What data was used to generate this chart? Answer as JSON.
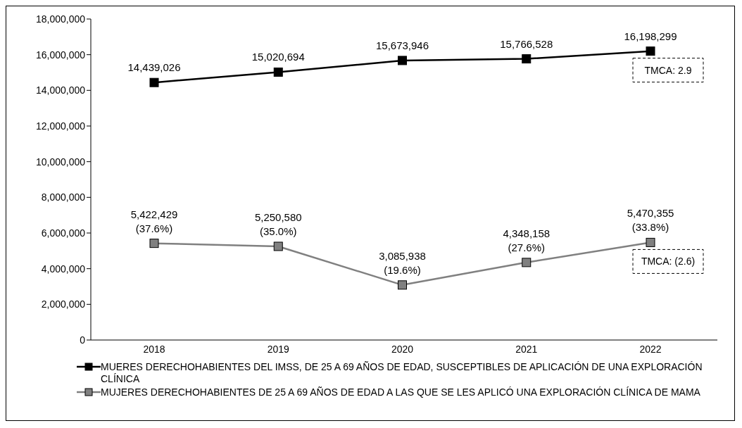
{
  "chart_data": {
    "type": "line",
    "categories": [
      "2018",
      "2019",
      "2020",
      "2021",
      "2022"
    ],
    "series": [
      {
        "name": "MUERES DERECHOHABIENTES DEL IMSS, DE 25 A 69 AÑOS DE EDAD, SUSCEPTIBLES DE APLICACIÓN DE UNA EXPLORACIÓN CLÍNICA",
        "color": "#000000",
        "values": [
          14439026,
          15020694,
          15673946,
          15766528,
          16198299
        ],
        "value_labels": [
          "14,439,026",
          "15,020,694",
          "15,673,946",
          "15,766,528",
          "16,198,299"
        ]
      },
      {
        "name": "MUJERES DERECHOHABIENTES DE 25 A 69 AÑOS DE EDAD A LAS QUE SE LES APLICÓ UNA EXPLORACIÓN CLÍNICA DE MAMA",
        "color": "#808080",
        "values": [
          5422429,
          5250580,
          3085938,
          4348158,
          5470355
        ],
        "value_labels": [
          "5,422,429\n(37.6%)",
          "5,250,580\n(35.0%)",
          "3,085,938\n(19.6%)",
          "4,348,158\n(27.6%)",
          "5,470,355\n(33.8%)"
        ]
      }
    ],
    "ylim": [
      0,
      18000000
    ],
    "yticks": [
      0,
      {
        "value": 2000000,
        "label": "2,000,000"
      },
      {
        "value": 4000000,
        "label": "4,000,000"
      },
      {
        "value": 6000000,
        "label": "6,000,000"
      },
      {
        "value": 8000000,
        "label": "8,000,000"
      },
      {
        "value": 10000000,
        "label": "10,000,000"
      },
      {
        "value": 12000000,
        "label": "12,000,000"
      },
      {
        "value": 14000000,
        "label": "14,000,000"
      },
      {
        "value": 16000000,
        "label": "16,000,000"
      },
      {
        "value": 18000000,
        "label": "18,000,000"
      }
    ],
    "grid": false,
    "legend": "bottom",
    "marker": "square",
    "line_style": "solid",
    "annotations": [
      {
        "text": "TMCA: 2.9",
        "x": "2022",
        "y": 16198299
      },
      {
        "text": "TMCA: (2.6)",
        "x": "2022",
        "y": 5470355
      }
    ]
  }
}
